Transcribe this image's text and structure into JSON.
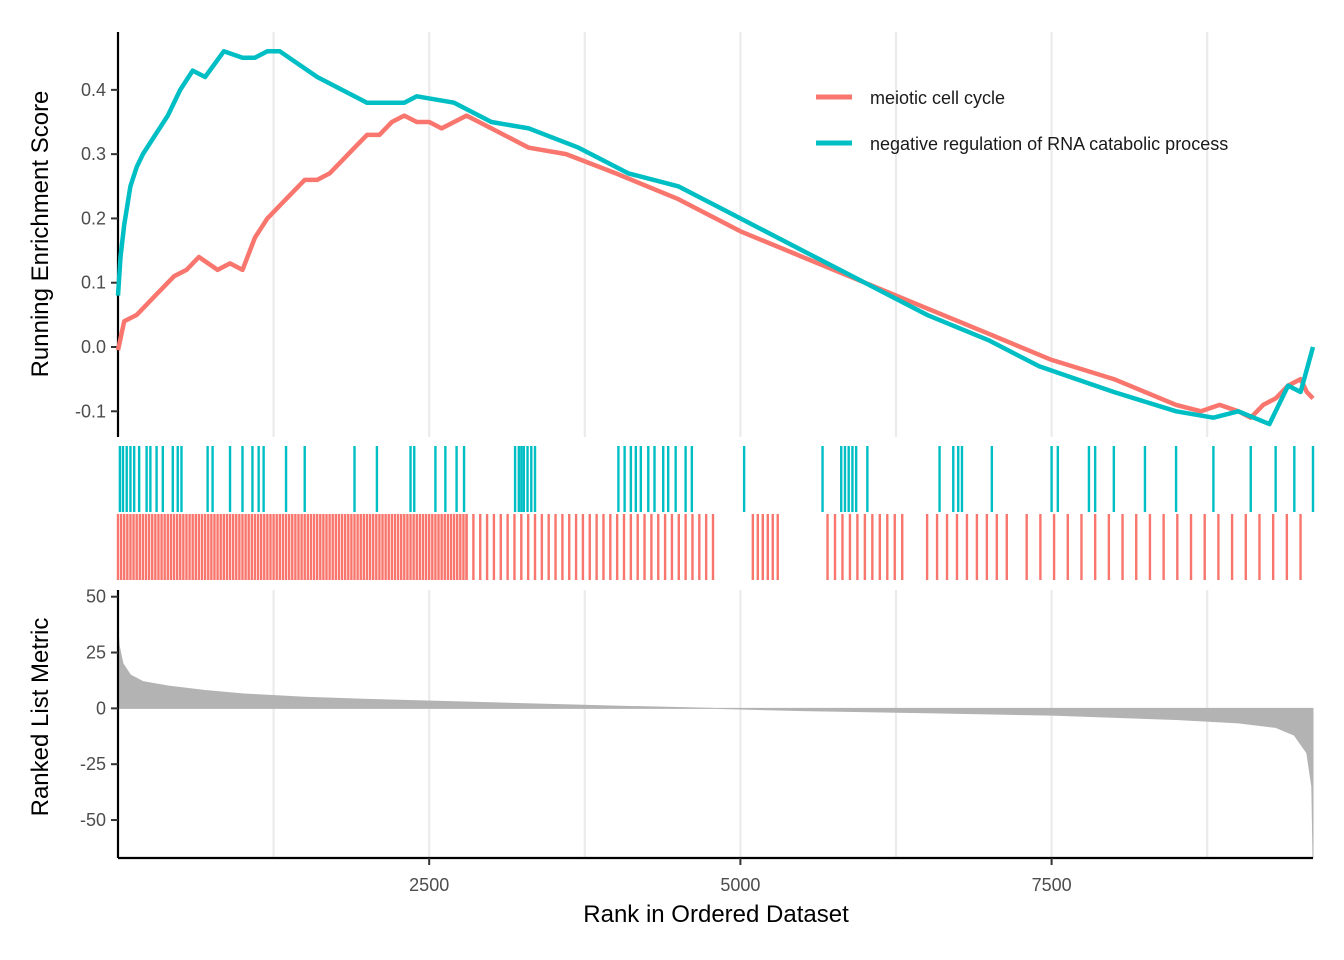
{
  "chart_data": {
    "type": "line",
    "xlabel": "Rank in Ordered Dataset",
    "x_ticks": [
      2500,
      5000,
      7500
    ],
    "x_range": [
      0,
      9600
    ],
    "legend_position": "top-right",
    "grid": "vertical",
    "panels": [
      {
        "name": "running-enrichment",
        "ylabel": "Running Enrichment Score",
        "ylim": [
          -0.14,
          0.49
        ],
        "y_ticks": [
          0.0,
          0.1,
          0.2,
          0.3,
          0.4,
          -0.1
        ],
        "y_tick_labels": [
          "0.0",
          "0.1",
          "0.2",
          "0.3",
          "0.4",
          "-0.1"
        ]
      },
      {
        "name": "gene-hits",
        "ylabel": ""
      },
      {
        "name": "ranked-list-metric",
        "ylabel": "Ranked List Metric",
        "ylim": [
          -67,
          53
        ],
        "y_ticks": [
          50,
          25,
          0,
          -25,
          -50
        ],
        "y_tick_labels": [
          "50",
          "25",
          "0",
          "-25",
          "-50"
        ],
        "metric_profile": {
          "rank": [
            0,
            10,
            40,
            100,
            200,
            400,
            700,
            1000,
            1500,
            2000,
            3000,
            4000,
            4800,
            5500,
            6500,
            7500,
            8500,
            9000,
            9300,
            9450,
            9550,
            9590,
            9600
          ],
          "value": [
            35,
            28,
            20,
            15,
            12,
            10,
            8,
            6.5,
            5,
            4,
            2.5,
            1,
            0,
            -1,
            -2,
            -3,
            -5,
            -6.5,
            -8.5,
            -12,
            -20,
            -35,
            -67
          ]
        }
      }
    ],
    "series": [
      {
        "name": "meiotic cell cycle",
        "color": "#F8766D",
        "points": {
          "x": [
            0,
            50,
            150,
            300,
            450,
            550,
            650,
            800,
            900,
            1000,
            1100,
            1200,
            1300,
            1400,
            1500,
            1600,
            1700,
            1800,
            1900,
            2000,
            2100,
            2200,
            2300,
            2400,
            2500,
            2600,
            2700,
            2800,
            3000,
            3300,
            3600,
            4000,
            4500,
            5000,
            5500,
            6000,
            6500,
            7000,
            7500,
            8000,
            8500,
            8700,
            8850,
            9000,
            9100,
            9200,
            9300,
            9400,
            9500,
            9550,
            9600
          ],
          "y": [
            -0.005,
            0.04,
            0.05,
            0.08,
            0.11,
            0.12,
            0.14,
            0.12,
            0.13,
            0.12,
            0.17,
            0.2,
            0.22,
            0.24,
            0.26,
            0.26,
            0.27,
            0.29,
            0.31,
            0.33,
            0.33,
            0.35,
            0.36,
            0.35,
            0.35,
            0.34,
            0.35,
            0.36,
            0.34,
            0.31,
            0.3,
            0.27,
            0.23,
            0.18,
            0.14,
            0.1,
            0.06,
            0.02,
            -0.02,
            -0.05,
            -0.09,
            -0.1,
            -0.09,
            -0.1,
            -0.11,
            -0.09,
            -0.08,
            -0.06,
            -0.05,
            -0.07,
            -0.08
          ]
        }
      },
      {
        "name": "negative regulation of RNA catabolic process",
        "color": "#00BFC4",
        "points": {
          "x": [
            0,
            20,
            50,
            100,
            150,
            200,
            300,
            400,
            500,
            600,
            700,
            850,
            1000,
            1100,
            1200,
            1300,
            1600,
            2000,
            2300,
            2400,
            2700,
            3000,
            3300,
            3700,
            4100,
            4500,
            5000,
            5500,
            5800,
            6500,
            7000,
            7400,
            8000,
            8500,
            8800,
            9000,
            9250,
            9400,
            9500,
            9600
          ],
          "y": [
            0.08,
            0.14,
            0.19,
            0.25,
            0.28,
            0.3,
            0.33,
            0.36,
            0.4,
            0.43,
            0.42,
            0.46,
            0.45,
            0.45,
            0.46,
            0.46,
            0.42,
            0.38,
            0.38,
            0.39,
            0.38,
            0.35,
            0.34,
            0.31,
            0.27,
            0.25,
            0.2,
            0.15,
            0.12,
            0.05,
            0.01,
            -0.03,
            -0.07,
            -0.1,
            -0.11,
            -0.1,
            -0.12,
            -0.06,
            -0.07,
            0.0
          ]
        }
      }
    ],
    "hits": {
      "negative regulation of RNA catabolic process": [
        15,
        40,
        70,
        100,
        130,
        170,
        230,
        260,
        310,
        360,
        440,
        480,
        510,
        720,
        760,
        900,
        1000,
        1080,
        1130,
        1170,
        1350,
        1500,
        1900,
        2080,
        2350,
        2380,
        2550,
        2630,
        2720,
        2780,
        3190,
        3220,
        3240,
        3260,
        3290,
        3320,
        3350,
        4020,
        4070,
        4120,
        4160,
        4200,
        4260,
        4310,
        4380,
        4420,
        4480,
        4560,
        4610,
        5030,
        5660,
        5810,
        5840,
        5870,
        5900,
        5930,
        6020,
        6600,
        6710,
        6750,
        6780,
        7020,
        7500,
        7550,
        7800,
        7850,
        8000,
        8250,
        8500,
        8800,
        9100,
        9300,
        9450,
        9600
      ]
    },
    "meiotic_hit_bands": [
      {
        "from": 0,
        "to": 2800,
        "step": 25
      },
      {
        "from": 2800,
        "to": 4800,
        "step": 55
      },
      {
        "from": 5100,
        "to": 5300,
        "step": 40
      },
      {
        "from": 5700,
        "to": 6300,
        "step": 60
      },
      {
        "from": 6500,
        "to": 7200,
        "step": 80
      },
      {
        "from": 7300,
        "to": 9600,
        "step": 110
      }
    ]
  },
  "legend": [
    {
      "label": "meiotic cell cycle",
      "color": "#F8766D"
    },
    {
      "label": "negative regulation of RNA catabolic process",
      "color": "#00BFC4"
    }
  ]
}
